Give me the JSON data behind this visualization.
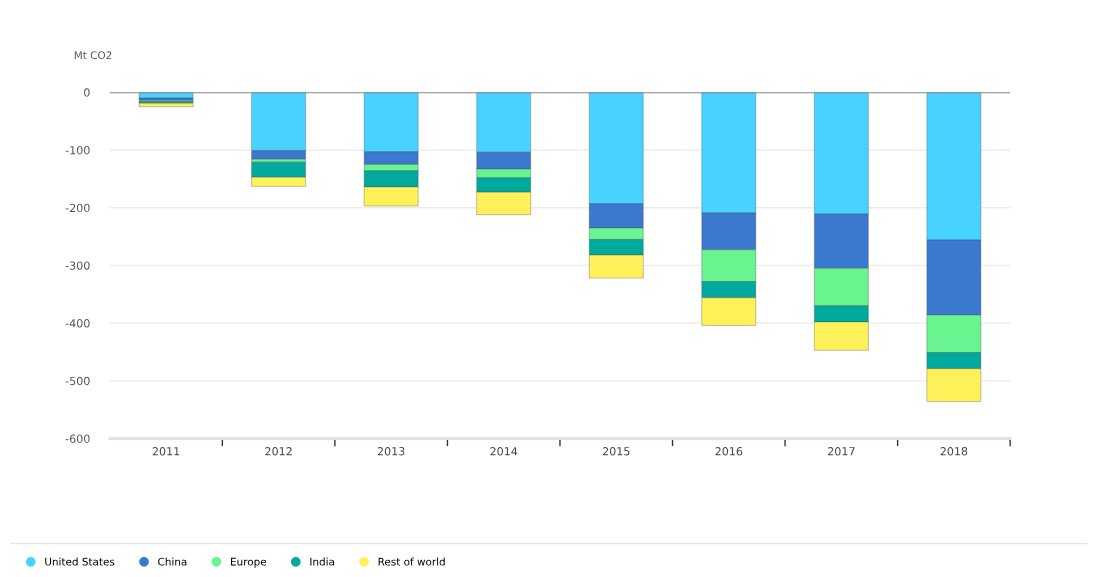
{
  "chart_data": {
    "type": "bar",
    "stacked": true,
    "ylabel": "Mt CO2",
    "categories": [
      "2011",
      "2012",
      "2013",
      "2014",
      "2015",
      "2016",
      "2017",
      "2018"
    ],
    "series": [
      {
        "name": "United States",
        "color": "#48d2ff",
        "values": [
          -10,
          -101,
          -103,
          -104,
          -193,
          -209,
          -211,
          -256
        ]
      },
      {
        "name": "China",
        "color": "#3b78d0",
        "values": [
          -4,
          -15,
          -22,
          -29,
          -42,
          -64,
          -94,
          -130
        ]
      },
      {
        "name": "Europe",
        "color": "#69f48f",
        "values": [
          -2,
          -5,
          -11,
          -15,
          -20,
          -55,
          -65,
          -65
        ]
      },
      {
        "name": "India",
        "color": "#00a99d",
        "values": [
          -3,
          -26,
          -28,
          -25,
          -27,
          -28,
          -28,
          -28
        ]
      },
      {
        "name": "Rest of world",
        "color": "#fff15a",
        "values": [
          -6,
          -16,
          -33,
          -39,
          -40,
          -48,
          -49,
          -57
        ]
      }
    ],
    "ylim": [
      -600,
      0
    ],
    "yticks": [
      -600,
      -500,
      -400,
      -300,
      -200,
      -100,
      0
    ],
    "grid": "y",
    "legend": "bottom"
  }
}
